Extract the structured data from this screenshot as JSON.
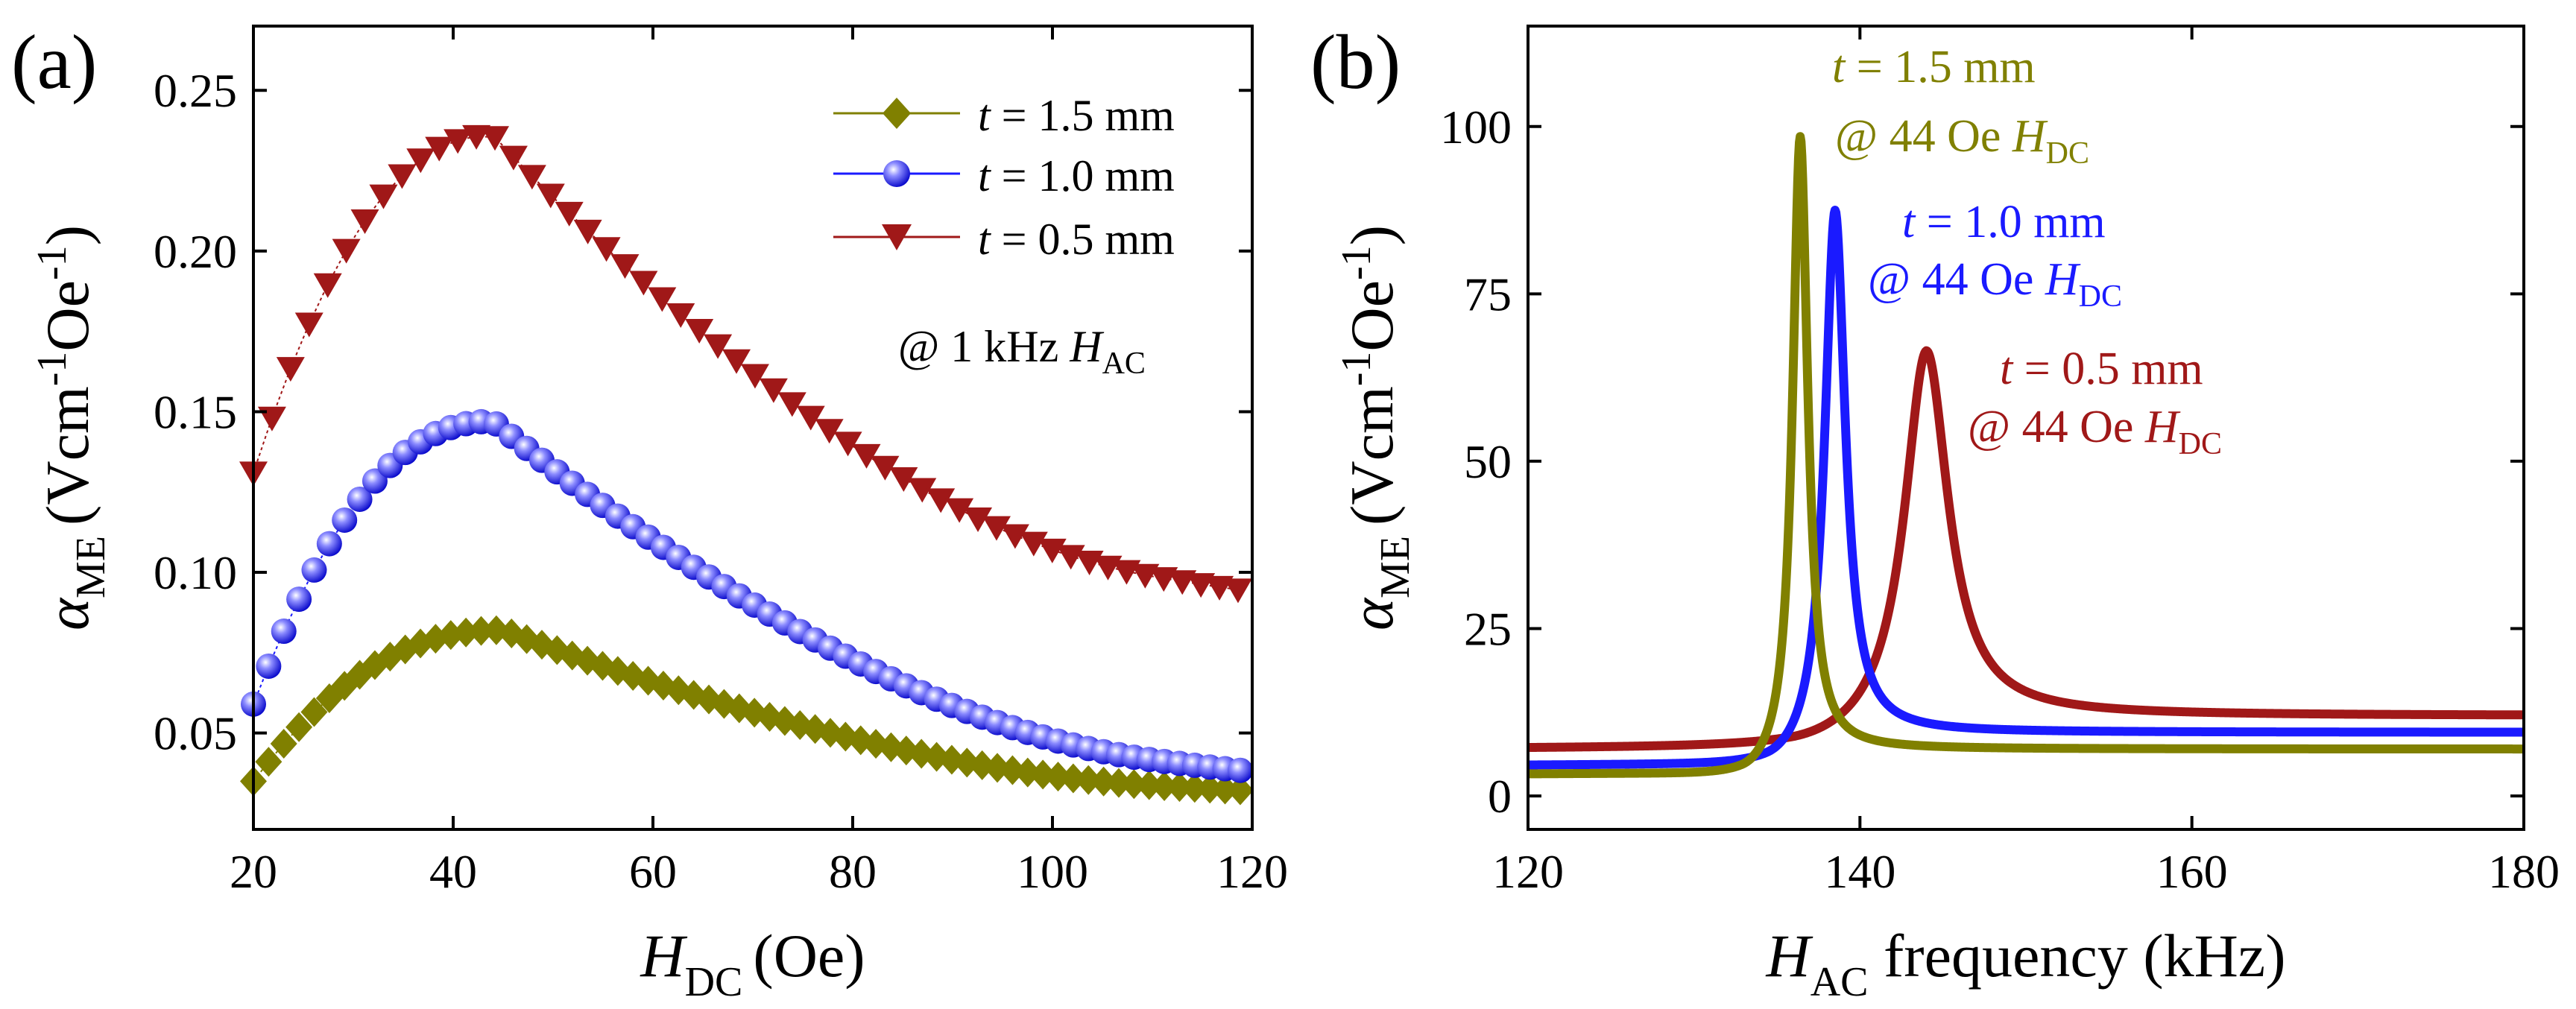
{
  "chart_data": [
    {
      "type": "scatter",
      "panel_label": "(a)",
      "xlabel_main": "H",
      "xlabel_sub": "DC",
      "xlabel_unit": "(Oe)",
      "ylabel_main": "α",
      "ylabel_sub": "ME",
      "ylabel_unit": "(Vcm",
      "ylabel_exp1": "-1",
      "ylabel_mid": "Oe",
      "ylabel_exp2": "-1",
      "ylabel_close": ")",
      "xlim": [
        20,
        120
      ],
      "ylim": [
        0.02,
        0.27
      ],
      "xticks": [
        "20",
        "40",
        "60",
        "80",
        "100",
        "120"
      ],
      "xtick_values": [
        20,
        40,
        60,
        80,
        100,
        120
      ],
      "yticks": [
        "0.05",
        "0.10",
        "0.15",
        "0.20",
        "0.25"
      ],
      "ytick_values": [
        0.05,
        0.1,
        0.15,
        0.2,
        0.25
      ],
      "annotation": {
        "prefix": "@ 1 kHz ",
        "var": "H",
        "sub": "AC"
      },
      "series": [
        {
          "t_label": "t",
          "name": " = 1.5 mm",
          "color": "#808000",
          "marker": "diamond",
          "x_start": 20,
          "x_step": 1.52,
          "x_count": 67,
          "peak_x": 45,
          "peak_y": 0.082,
          "start_y": 0.035,
          "end_y": 0.032
        },
        {
          "t_label": "t",
          "name": " = 1.0 mm",
          "color": "#1a1aff",
          "marker": "sphere",
          "x_start": 20,
          "x_step": 1.52,
          "x_count": 67,
          "peak_x": 44,
          "peak_y": 0.147,
          "start_y": 0.059,
          "end_y": 0.038
        },
        {
          "t_label": "t",
          "name": " = 0.5 mm",
          "color": "#a01818",
          "marker": "triangle-down",
          "x_start": 20,
          "x_step": 1.86,
          "x_count": 54,
          "peak_x": 44,
          "peak_y": 0.236,
          "start_y": 0.131,
          "end_y": 0.094
        }
      ]
    },
    {
      "type": "line",
      "panel_label": "(b)",
      "xlabel_main": "H",
      "xlabel_sub": "AC",
      "xlabel_unit": " frequency (kHz)",
      "ylabel_main": "α",
      "ylabel_sub": "ME",
      "ylabel_unit": "(Vcm",
      "ylabel_exp1": "-1",
      "ylabel_mid": "Oe",
      "ylabel_exp2": "-1",
      "ylabel_close": ")",
      "xlim": [
        120,
        180
      ],
      "ylim": [
        -5,
        115
      ],
      "xticks": [
        "120",
        "140",
        "160",
        "180"
      ],
      "xtick_values": [
        120,
        140,
        160,
        180
      ],
      "yticks": [
        "0",
        "25",
        "50",
        "75",
        "100"
      ],
      "ytick_values": [
        0,
        25,
        50,
        75,
        100
      ],
      "series": [
        {
          "t_label": "t",
          "name": " = 1.5 mm",
          "line2": "@ 44 Oe ",
          "var": "H",
          "sub": "DC",
          "color": "#808000",
          "f0": 136.4,
          "peak": 98.5,
          "width": 0.55,
          "base_low": 3.2,
          "base_high": 7.0,
          "dip_x": 133.0,
          "dip_y": 2.5
        },
        {
          "t_label": "t",
          "name": " = 1.0 mm",
          "line2": "@ 44 Oe ",
          "var": "H",
          "sub": "DC",
          "color": "#1a1aff",
          "f0": 138.5,
          "peak": 87.5,
          "width": 0.75,
          "base_low": 4.5,
          "base_high": 9.5,
          "dip_x": 134.5,
          "dip_y": 4.0
        },
        {
          "t_label": "t",
          "name": " = 0.5 mm",
          "line2": "@ 44 Oe ",
          "var": "H",
          "sub": "DC",
          "color": "#a01818",
          "f0": 144.0,
          "peak": 66.5,
          "width": 1.6,
          "base_low": 7.0,
          "base_high": 12.0,
          "dip_x": 136.0,
          "dip_y": 6.8
        }
      ]
    }
  ]
}
